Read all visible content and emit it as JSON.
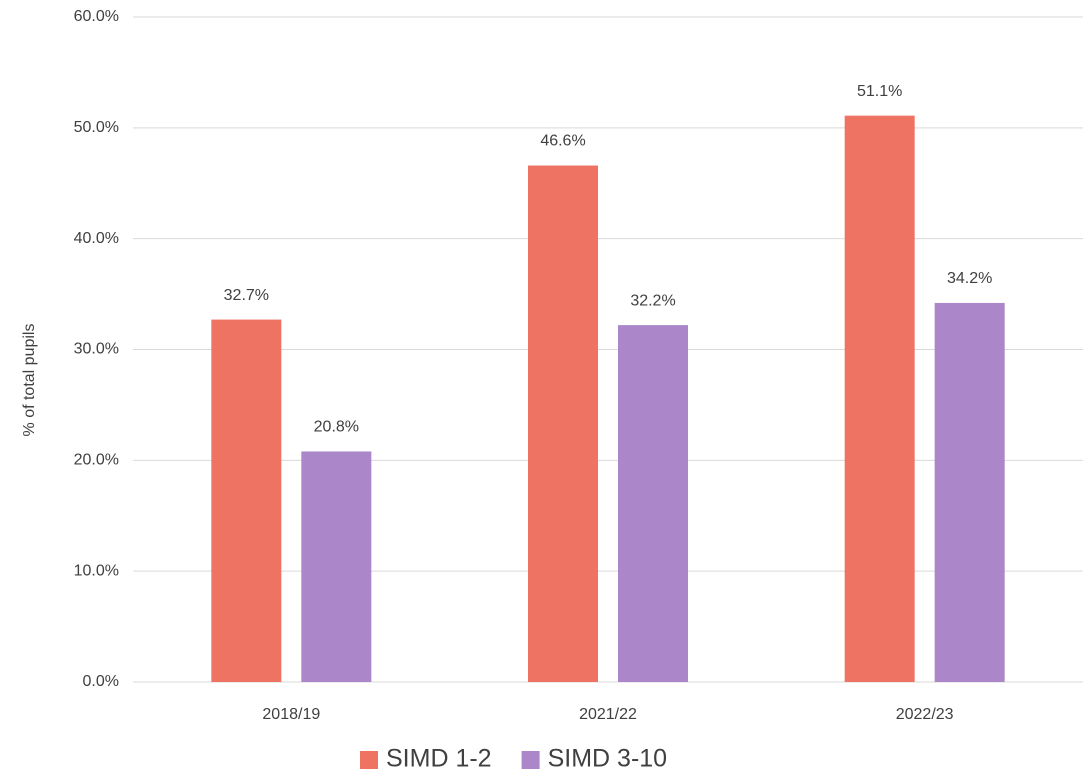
{
  "chart_data": {
    "type": "bar",
    "y_label": "% of total pupils",
    "categories": [
      "2018/19",
      "2021/22",
      "2022/23"
    ],
    "series": [
      {
        "name": "SIMD 1-2",
        "color": "#ee7362",
        "values": [
          32.7,
          46.6,
          51.1
        ],
        "value_labels": [
          "32.7%",
          "46.6%",
          "51.1%"
        ]
      },
      {
        "name": "SIMD 3-10",
        "color": "#ab86c8",
        "values": [
          20.8,
          32.2,
          34.2
        ],
        "value_labels": [
          "20.8%",
          "32.2%",
          "34.2%"
        ]
      }
    ],
    "ylim": [
      0,
      60
    ],
    "yticks": [
      {
        "value": 0,
        "label": "0.0%"
      },
      {
        "value": 10,
        "label": "10.0%"
      },
      {
        "value": 20,
        "label": "20.0%"
      },
      {
        "value": 30,
        "label": "30.0%"
      },
      {
        "value": 40,
        "label": "40.0%"
      },
      {
        "value": 50,
        "label": "50.0%"
      },
      {
        "value": 60,
        "label": "60.0%"
      }
    ],
    "grid": true,
    "legend": "bottom"
  }
}
